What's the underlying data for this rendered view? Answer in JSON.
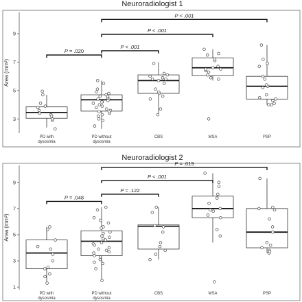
{
  "chart_data": [
    {
      "type": "box",
      "title": "Neuroradiologist 1",
      "ylabel": "Area (mm²)",
      "ylim": [
        2,
        10.5
      ],
      "yticks": [
        3,
        5,
        7,
        9
      ],
      "categories": [
        "PD with dysosmia",
        "PD without dysosmia",
        "CBS",
        "MSA",
        "PSP"
      ],
      "category_lines": [
        [
          "PD with",
          "dysosmia"
        ],
        [
          "PD without",
          "dysosmia"
        ],
        [
          "CBS"
        ],
        [
          "MSA"
        ],
        [
          "PSP"
        ]
      ],
      "boxes": [
        {
          "q1": 3.05,
          "median": 3.45,
          "q3": 3.85,
          "whisker_low": 2.4,
          "whisker_high": 4.7
        },
        {
          "q1": 3.55,
          "median": 4.35,
          "q3": 4.7,
          "whisker_low": 2.3,
          "whisker_high": 5.7
        },
        {
          "q1": 4.8,
          "median": 5.7,
          "q3": 6.1,
          "whisker_low": 3.3,
          "whisker_high": 7.0
        },
        {
          "q1": 6.05,
          "median": 6.6,
          "q3": 7.3,
          "whisker_low": 5.7,
          "whisker_high": 7.9
        },
        {
          "q1": 4.4,
          "median": 5.3,
          "q3": 6.0,
          "whisker_low": 4.0,
          "whisker_high": 8.2
        }
      ],
      "points": [
        [
          3.3,
          3.6,
          3.9,
          2.9,
          4.1,
          3.0,
          3.4,
          2.3,
          4.7,
          3.2,
          3.8,
          4.95
        ],
        [
          2.9,
          3.5,
          4.4,
          3.3,
          2.5,
          4.1,
          4.8,
          3.8,
          4.6,
          3.6,
          4.9,
          4.2,
          3.4,
          4.4,
          5.1,
          3.9,
          4.5,
          3.2,
          4.3,
          5.7,
          3.7,
          4.0,
          4.7,
          3.5,
          4.2,
          5.5,
          3.0,
          4.6
        ],
        [
          3.3,
          5.1,
          5.8,
          4.4,
          6.2,
          6.0,
          4.8,
          6.9,
          4.9,
          5.5,
          5.9,
          6.1,
          5.7,
          4.6,
          5.8,
          3.7
        ],
        [
          3.0,
          6.5,
          7.1,
          6.4,
          7.5,
          5.8,
          6.7,
          7.9,
          6.5,
          6.3,
          7.6,
          6.1,
          5.9,
          7.2,
          6.6
        ],
        [
          4.3,
          5.3,
          4.1,
          6.0,
          8.2,
          4.5,
          5.8,
          6.7,
          4.0,
          5.2,
          4.4,
          7.2,
          4.7,
          5.4,
          4.0,
          6.9
        ]
      ],
      "comparisons": [
        {
          "from": 0,
          "to": 1,
          "y": 7.5,
          "prefix": "P",
          "text": " = .020",
          "italic": false
        },
        {
          "from": 1,
          "to": 2,
          "y": 7.8,
          "prefix": "P",
          "text": " < .001",
          "italic": true
        },
        {
          "from": 1,
          "to": 3,
          "y": 8.95,
          "prefix": "P",
          "text": " < .001",
          "italic": true
        },
        {
          "from": 1,
          "to": 4,
          "y": 10.0,
          "prefix": "P",
          "text": " < .001",
          "italic": true
        }
      ]
    },
    {
      "type": "box",
      "title": "Neuroradiologist 2",
      "ylabel": "Area (mm²)",
      "ylim": [
        0.8,
        10.3
      ],
      "yticks": [
        1,
        3,
        5,
        7,
        9
      ],
      "categories": [
        "PD with dysosmia",
        "PD without dysosmia",
        "CBS",
        "MSA",
        "PSP"
      ],
      "category_lines": [
        [
          "PD with",
          "dysosmia"
        ],
        [
          "PD without",
          "dysosmia"
        ],
        [
          "CBS"
        ],
        [
          "MSA"
        ],
        [
          "PSP"
        ]
      ],
      "boxes": [
        {
          "q1": 2.4,
          "median": 3.6,
          "q3": 4.6,
          "whisker_low": 1.3,
          "whisker_high": 5.6
        },
        {
          "q1": 3.4,
          "median": 4.5,
          "q3": 5.3,
          "whisker_low": 1.5,
          "whisker_high": 7.1
        },
        {
          "q1": 3.9,
          "median": 5.65,
          "q3": 5.75,
          "whisker_low": 3.1,
          "whisker_high": 7.1
        },
        {
          "q1": 6.3,
          "median": 7.0,
          "q3": 7.95,
          "whisker_low": 4.4,
          "whisker_high": 9.7
        },
        {
          "q1": 4.0,
          "median": 5.2,
          "q3": 7.0,
          "whisker_low": 3.6,
          "whisker_high": 9.3
        }
      ],
      "points": [
        [
          1.3,
          2.5,
          3.5,
          4.1,
          5.6,
          2.0,
          3.0,
          5.4,
          2.4,
          3.9,
          4.6,
          1.8
        ],
        [
          1.5,
          2.8,
          3.6,
          4.4,
          5.2,
          3.1,
          4.8,
          6.3,
          3.9,
          4.3,
          5.6,
          2.4,
          3.4,
          6.9,
          4.9,
          3.7,
          5.1,
          4.0,
          2.9,
          5.9,
          4.6,
          3.3,
          6.1,
          4.2,
          7.1,
          3.8,
          5.5,
          4.7
        ],
        [
          3.1,
          7.1,
          5.7,
          4.1,
          3.8,
          5.2,
          6.7,
          4.4,
          5.6,
          3.5
        ],
        [
          1.4,
          4.9,
          7.8,
          5.4,
          6.8,
          8.7,
          7.0,
          6.5,
          7.4,
          9.0,
          6.9,
          8.1,
          9.7,
          6.3
        ],
        [
          3.6,
          5.6,
          6.2,
          3.8,
          6.9,
          4.2,
          9.3,
          4.4,
          7.1,
          3.7,
          5.2,
          7.0,
          4.0
        ]
      ],
      "comparisons": [
        {
          "from": 0,
          "to": 1,
          "y": 7.55,
          "prefix": "P",
          "text": " = .048",
          "italic": false
        },
        {
          "from": 1,
          "to": 2,
          "y": 8.1,
          "prefix": "P",
          "text": " = .122",
          "italic": false
        },
        {
          "from": 1,
          "to": 3,
          "y": 9.15,
          "prefix": "P",
          "text": " < .001",
          "italic": true
        },
        {
          "from": 1,
          "to": 4,
          "y": 10.15,
          "prefix": "P",
          "text": " = .019",
          "italic": false
        }
      ]
    }
  ],
  "colors": {
    "axis": "#555555",
    "box_stroke": "#333333",
    "bracket": "#111111",
    "point_stroke": "#444444",
    "panel_border": "#888888"
  }
}
